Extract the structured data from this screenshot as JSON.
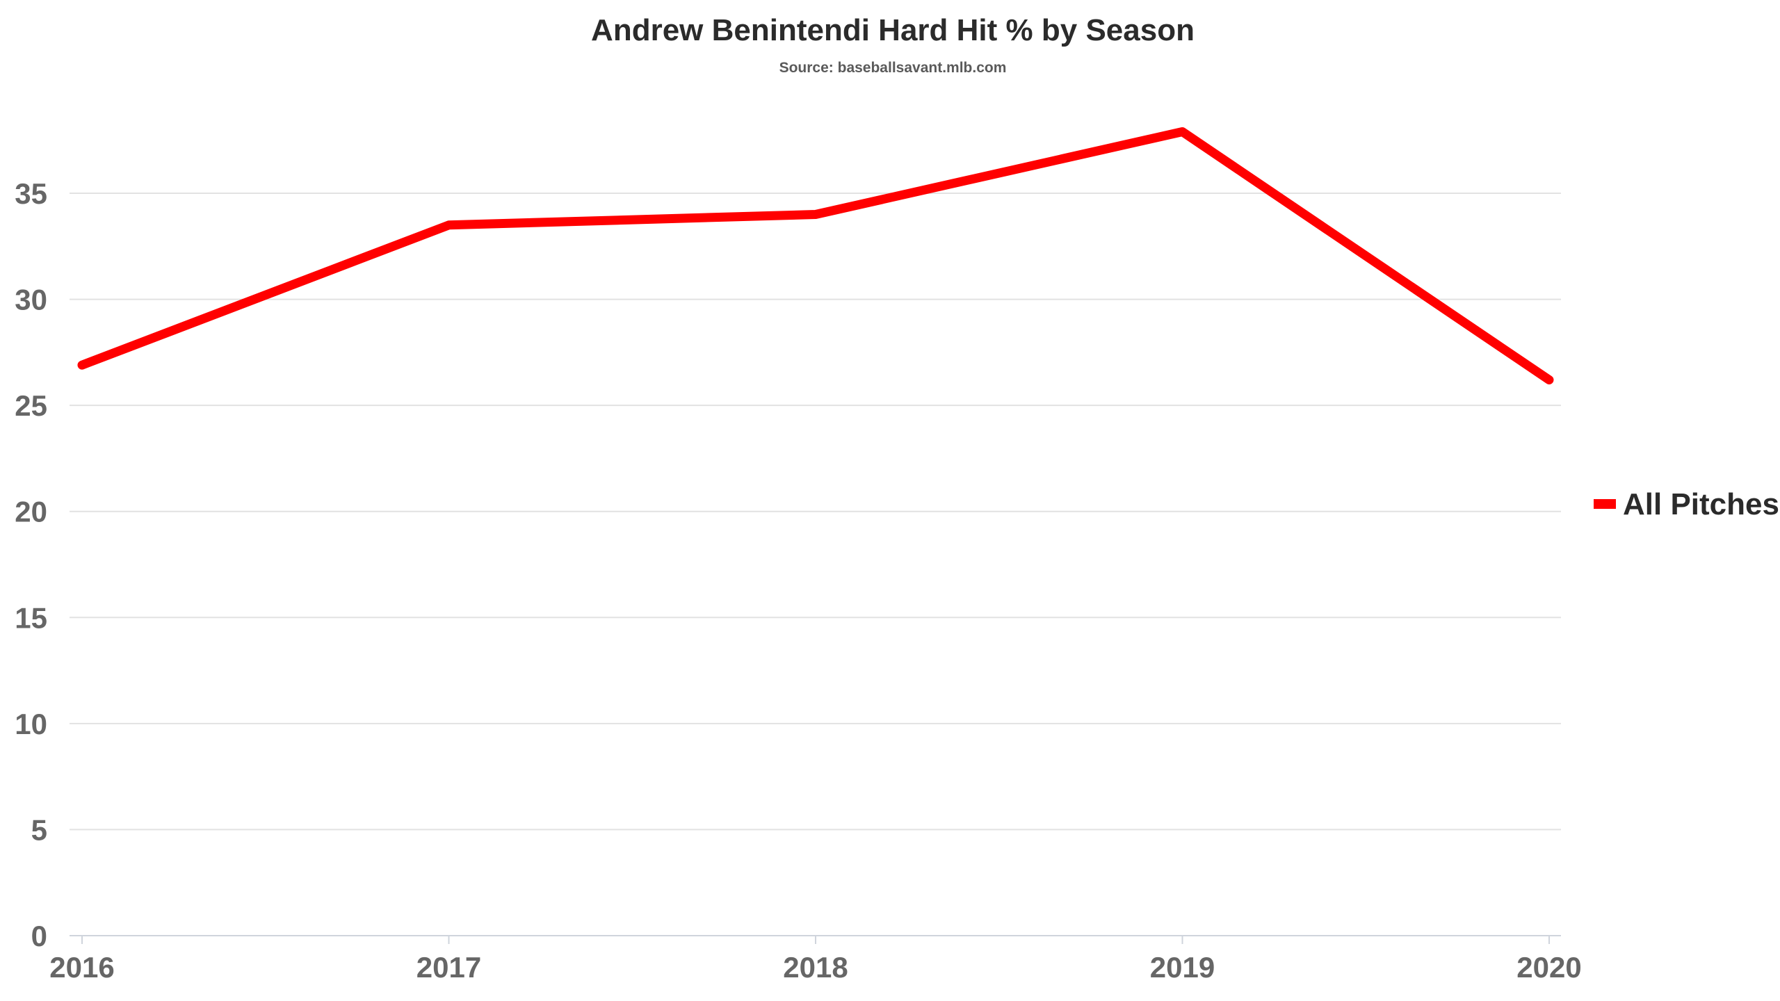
{
  "chart_data": {
    "type": "line",
    "title": "Andrew Benintendi Hard Hit % by Season",
    "subtitle": "Source: baseballsavant.mlb.com",
    "xlabel": "",
    "ylabel": "",
    "categories": [
      "2016",
      "2017",
      "2018",
      "2019",
      "2020"
    ],
    "series": [
      {
        "name": "All Pitches",
        "values": [
          26.9,
          33.5,
          34.0,
          37.9,
          26.2
        ],
        "color": "#ff0000"
      }
    ],
    "ylim": [
      0,
      40
    ],
    "yticks": [
      0,
      5,
      10,
      15,
      20,
      25,
      30,
      35
    ],
    "grid": true,
    "legend_position": "right"
  }
}
